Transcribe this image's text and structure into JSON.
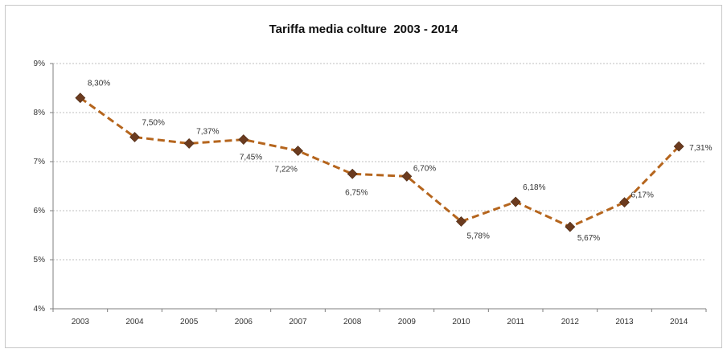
{
  "chart_data": {
    "type": "line",
    "title": "Tariffa media colture  2003 - 2014",
    "xlabel": "",
    "ylabel": "",
    "categories": [
      "2003",
      "2004",
      "2005",
      "2006",
      "2007",
      "2008",
      "2009",
      "2010",
      "2011",
      "2012",
      "2013",
      "2014"
    ],
    "series": [
      {
        "values": [
          8.3,
          7.5,
          7.37,
          7.45,
          7.22,
          6.75,
          6.7,
          5.78,
          6.18,
          5.67,
          6.17,
          7.31
        ],
        "labels": [
          "8,30%",
          "7,50%",
          "7,37%",
          "7,45%",
          "7,22%",
          "6,75%",
          "6,70%",
          "5,78%",
          "6,18%",
          "5,67%",
          "6,17%",
          "7,31%"
        ]
      }
    ],
    "ylim": [
      4,
      9
    ],
    "yticks": [
      4,
      5,
      6,
      7,
      8,
      9
    ],
    "yticklabels": [
      "4%",
      "5%",
      "6%",
      "7%",
      "8%",
      "9%"
    ],
    "grid": true,
    "legend": "none",
    "colors": {
      "line": "#b5651d",
      "marker": "#6b3b1f",
      "grid": "#bfbfbf",
      "axis": "#7f7f7f"
    }
  }
}
